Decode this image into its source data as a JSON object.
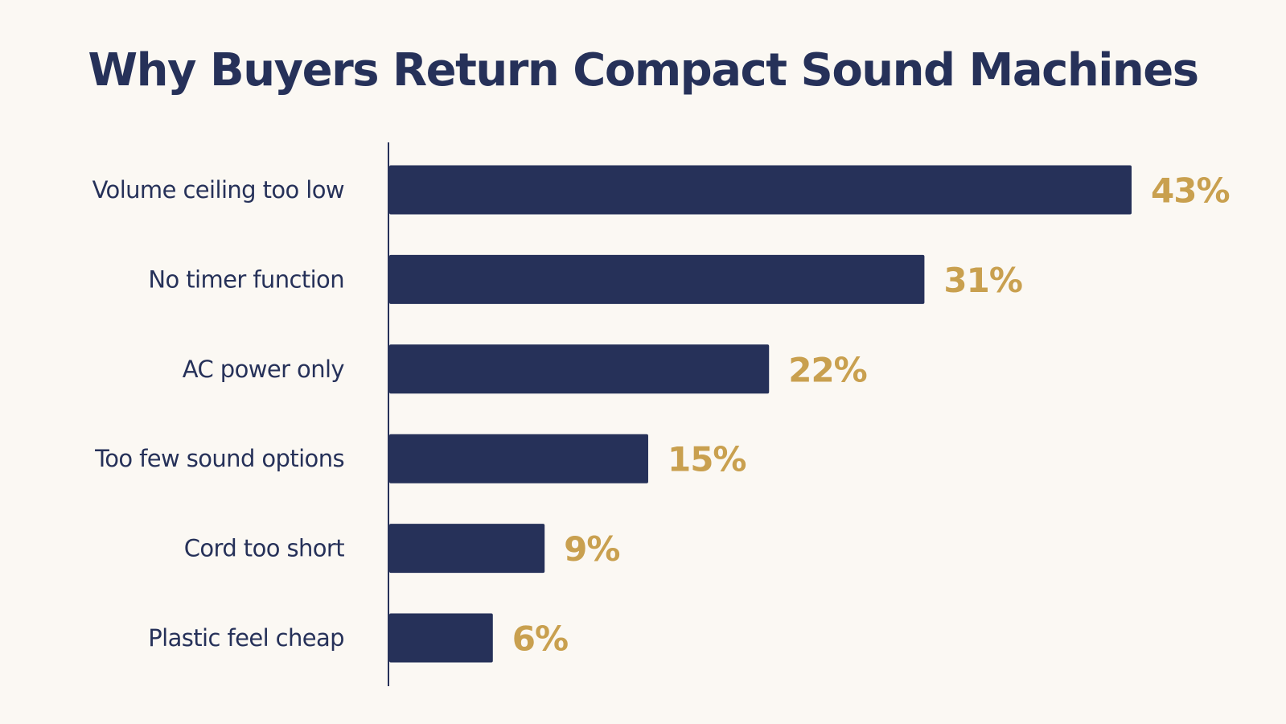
{
  "colors": {
    "background": "#fbf8f3",
    "bar": "#263159",
    "title": "#263159",
    "category_label": "#263159",
    "value_label": "#c9a04f",
    "axis": "#263159"
  },
  "chart_data": {
    "type": "bar",
    "orientation": "horizontal",
    "title": "Why Buyers Return Compact Sound Machines",
    "xlabel": "",
    "ylabel": "",
    "unit": "%",
    "categories": [
      "Volume ceiling too low",
      "No timer function",
      "AC power only",
      "Too few sound options",
      "Cord too short",
      "Plastic feel cheap"
    ],
    "values": [
      43,
      31,
      22,
      15,
      9,
      6
    ],
    "value_labels": [
      "43%",
      "31%",
      "22%",
      "15%",
      "9%",
      "6%"
    ],
    "xlim": [
      0,
      43
    ],
    "grid": false,
    "legend": "none"
  }
}
